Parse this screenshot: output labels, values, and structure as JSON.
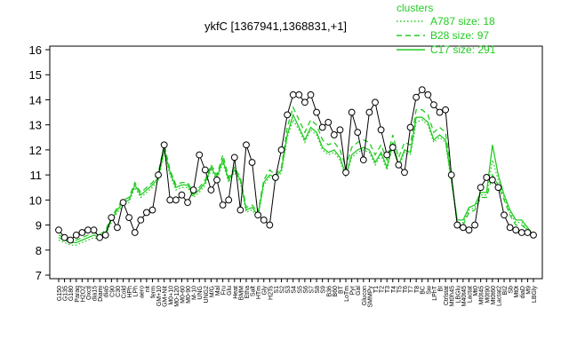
{
  "chart_data": {
    "type": "line",
    "title": "ykfC [1367941,1368831,+1]",
    "xlabel": "",
    "ylabel": "",
    "ylim": [
      7,
      16
    ],
    "yticks": [
      7,
      8,
      9,
      10,
      11,
      12,
      13,
      14,
      15,
      16
    ],
    "grid": false,
    "legend": {
      "title": "clusters",
      "placement": "top-right",
      "entries": [
        {
          "label": "A787 size: 18",
          "style": "dotted",
          "color": "#22cc22"
        },
        {
          "label": "B28 size: 97",
          "style": "dashed",
          "color": "#22cc22"
        },
        {
          "label": "C17 size: 291",
          "style": "solid",
          "color": "#22cc22"
        }
      ]
    },
    "x_tick_labels": [
      "G150",
      "G135",
      "G180",
      "Paraq",
      "H2O2",
      "Oxctl",
      "dia15",
      "Diami",
      "dia5",
      "C90",
      "C30",
      "Cold",
      "HPh",
      "LPh",
      "aero",
      "nit",
      "ferm",
      "GM+10",
      "GM+Nit",
      "M0+10",
      "M0-120",
      "M0-60",
      "M0-90",
      "M-10",
      "UNG",
      "UNG2",
      "M/G",
      "Mal",
      "Fru",
      "Glu",
      "Heat",
      "BMM",
      "Etha",
      "Salt",
      "HTm",
      "Gly",
      "H2Ts",
      "S1",
      "S2",
      "S3",
      "S4",
      "S5",
      "S6",
      "S7",
      "S8",
      "S9",
      "B36",
      "B60",
      "BT",
      "LoTm",
      "Pyr",
      "Gal",
      "Glucon",
      "SMMPy",
      "T1",
      "T2",
      "T3",
      "T4",
      "T5",
      "T6",
      "T7",
      "T8",
      "BC",
      "Sw",
      "LPhT",
      "BI",
      "Ctrlstat",
      "Mt0h45",
      "LBGlu",
      "M40t45",
      "Lactat",
      "Mt0",
      "Mt0t45",
      "M0t90",
      "Mt0t60",
      "Lactat2",
      "BI2",
      "Sb",
      "Mt0t",
      "diaD",
      "M9",
      "LBGly"
    ],
    "series": [
      {
        "name": "C17 size: 291",
        "style": "solid",
        "values": [
          8.5,
          8.4,
          8.3,
          8.3,
          8.4,
          8.5,
          8.6,
          8.5,
          8.7,
          9.2,
          9.6,
          9.9,
          10.0,
          10.6,
          10.2,
          10.4,
          10.6,
          10.9,
          12.0,
          11.1,
          10.5,
          10.6,
          10.6,
          10.2,
          10.4,
          10.7,
          11.3,
          10.9,
          11.6,
          10.8,
          11.2,
          10.8,
          9.6,
          9.7,
          9.4,
          10.7,
          11.0,
          10.9,
          11.2,
          12.6,
          13.4,
          12.9,
          12.4,
          12.9,
          12.7,
          12.1,
          11.9,
          12.0,
          11.7,
          11.0,
          11.8,
          12.0,
          12.1,
          12.0,
          11.5,
          11.9,
          11.3,
          12.3,
          11.4,
          12.0,
          11.9,
          13.3,
          13.3,
          13.1,
          12.4,
          12.6,
          12.4,
          10.8,
          9.2,
          9.2,
          9.7,
          9.8,
          10.3,
          10.3,
          12.2,
          11.0,
          10.2,
          9.6,
          9.2,
          9.2,
          8.9,
          8.6
        ]
      },
      {
        "name": "B28 size: 97",
        "style": "dashed",
        "values": [
          8.6,
          8.5,
          8.4,
          8.4,
          8.5,
          8.6,
          8.7,
          8.6,
          8.8,
          9.3,
          9.7,
          10.0,
          10.1,
          10.7,
          10.3,
          10.5,
          10.7,
          11.1,
          12.2,
          11.2,
          10.6,
          10.7,
          10.7,
          10.3,
          10.5,
          10.8,
          11.4,
          11.0,
          11.8,
          10.9,
          11.3,
          10.9,
          9.7,
          9.8,
          9.5,
          10.8,
          11.2,
          11.0,
          11.3,
          12.9,
          13.7,
          13.2,
          12.7,
          13.2,
          13.0,
          12.4,
          12.2,
          12.3,
          12.0,
          11.3,
          12.1,
          12.3,
          12.4,
          12.3,
          11.8,
          12.2,
          11.6,
          12.6,
          11.7,
          12.3,
          12.2,
          13.6,
          13.6,
          13.4,
          12.7,
          12.9,
          12.7,
          11.0,
          9.0,
          9.0,
          9.5,
          9.6,
          10.1,
          10.1,
          11.0,
          10.6,
          10.0,
          9.4,
          9.0,
          9.0,
          8.8,
          8.5
        ]
      },
      {
        "name": "A787 size: 18",
        "style": "dotted",
        "values": [
          8.4,
          8.3,
          8.2,
          8.2,
          8.3,
          8.4,
          8.5,
          8.4,
          8.6,
          9.1,
          9.5,
          9.8,
          9.9,
          10.5,
          10.1,
          10.3,
          10.5,
          10.8,
          11.9,
          11.0,
          10.4,
          10.5,
          10.5,
          10.1,
          10.3,
          10.6,
          11.2,
          10.8,
          11.5,
          10.7,
          11.1,
          10.7,
          9.5,
          9.6,
          9.3,
          10.6,
          10.9,
          10.8,
          11.1,
          12.5,
          13.2,
          12.8,
          12.3,
          12.8,
          12.6,
          12.0,
          11.8,
          11.9,
          11.6,
          10.9,
          11.7,
          11.9,
          12.0,
          11.9,
          11.4,
          11.8,
          11.2,
          12.2,
          11.3,
          11.9,
          11.8,
          13.1,
          13.2,
          13.0,
          12.3,
          12.5,
          12.3,
          10.7,
          9.1,
          9.1,
          9.6,
          9.7,
          10.2,
          10.2,
          11.6,
          10.8,
          10.1,
          9.5,
          9.1,
          9.1,
          8.8,
          8.5
        ]
      },
      {
        "name": "ykfC",
        "style": "points",
        "values": [
          8.8,
          8.5,
          8.4,
          8.6,
          8.7,
          8.8,
          8.8,
          8.5,
          8.6,
          9.3,
          8.9,
          9.9,
          9.3,
          8.7,
          9.2,
          9.5,
          9.6,
          11.0,
          12.2,
          10.0,
          10.0,
          10.2,
          9.9,
          10.4,
          11.8,
          11.2,
          10.4,
          10.8,
          9.8,
          10.0,
          11.7,
          9.6,
          12.2,
          11.5,
          9.4,
          9.2,
          9.0,
          10.9,
          12.0,
          13.4,
          14.2,
          14.2,
          13.9,
          14.2,
          13.5,
          12.9,
          13.1,
          12.6,
          12.8,
          11.1,
          13.5,
          12.7,
          11.6,
          13.5,
          13.9,
          12.8,
          11.8,
          12.1,
          11.4,
          11.1,
          12.9,
          14.1,
          14.4,
          14.2,
          13.8,
          13.5,
          13.6,
          11.0,
          9.0,
          8.9,
          8.8,
          9.0,
          10.5,
          10.9,
          10.8,
          10.5,
          9.4,
          8.9,
          8.8,
          8.7,
          8.7,
          8.6
        ]
      }
    ]
  }
}
